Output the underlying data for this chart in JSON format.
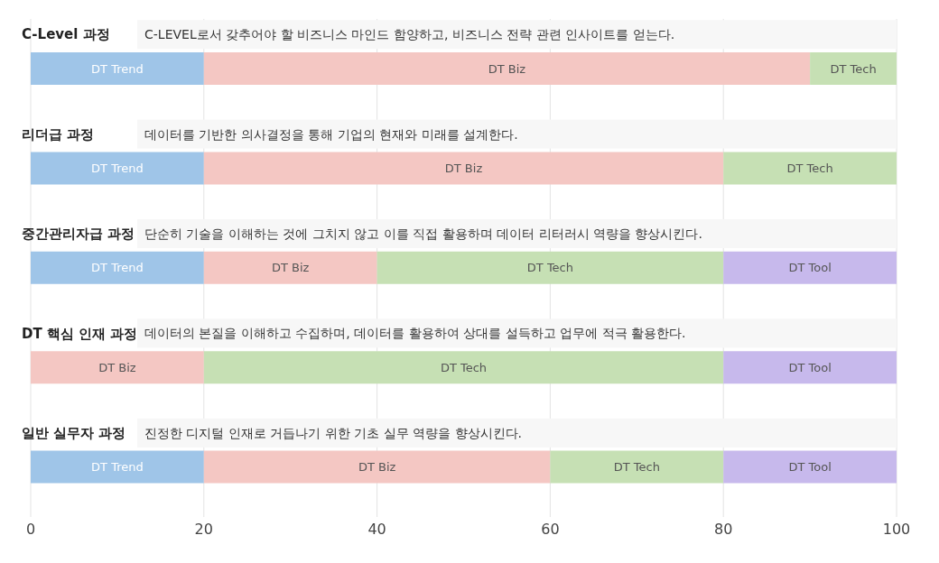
{
  "chart_data": {
    "type": "bar",
    "orientation": "horizontal",
    "stacked": true,
    "categories": [
      "C-Level 과정",
      "리더급 과정",
      "중간관리자급 과정",
      "DT 핵심 인재 과정",
      "일반 실무자 과정"
    ],
    "annotations": [
      "C-LEVEL로서 갖추어야 할 비즈니스 마인드 함양하고, 비즈니스 전략 관련 인사이트를 얻는다.",
      "데이터를 기반한 의사결정을 통해 기업의 현재와 미래를 설계한다.",
      "단순히 기술을 이해하는 것에 그치지 않고 이를 직접 활용하며 데이터 리터러시 역량을 향상시킨다.",
      "데이터의 본질을 이해하고 수집하며, 데이터를 활용하여 상대를 설득하고 업무에 적극 활용한다.",
      "진정한 디지털 인재로 거듭나기 위한 기초 실무 역량을 향상시킨다."
    ],
    "series": [
      {
        "name": "DT Trend",
        "color": "#9fc5e8",
        "values": [
          20,
          20,
          20,
          null,
          20
        ]
      },
      {
        "name": "DT Biz",
        "color": "#f4c7c3",
        "values": [
          70,
          60,
          20,
          20,
          40
        ]
      },
      {
        "name": "DT Tech",
        "color": "#c6e0b4",
        "values": [
          10,
          20,
          40,
          60,
          20
        ]
      },
      {
        "name": "DT Tool",
        "color": "#c7b9ec",
        "values": [
          null,
          null,
          20,
          20,
          20
        ]
      }
    ],
    "xlim": [
      0,
      100
    ],
    "xticks": [
      0,
      20,
      40,
      60,
      80,
      100
    ],
    "grid": "x"
  }
}
